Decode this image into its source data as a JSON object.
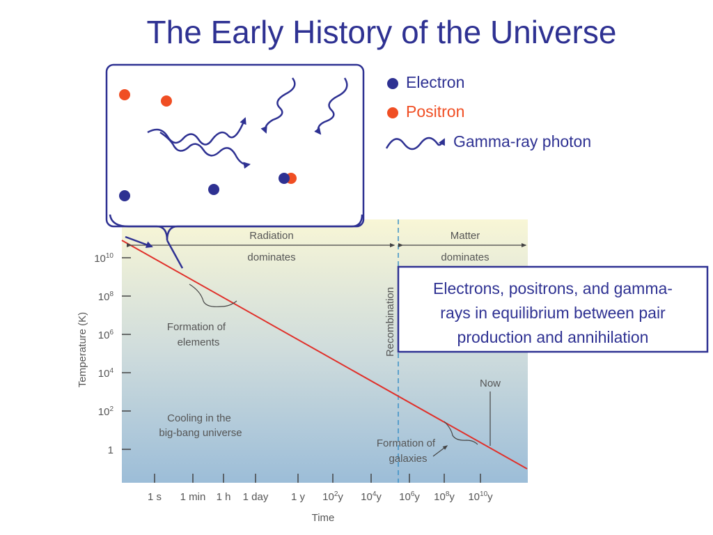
{
  "title": "The Early History of the Universe",
  "legend": [
    {
      "label": "Electron"
    },
    {
      "label": "Positron"
    },
    {
      "label": "Gamma-ray photon"
    }
  ],
  "chart": {
    "y_axis_label": "Temperature (K)",
    "x_axis_label": "Time",
    "y_ticks": [
      {
        "base": "10",
        "exp": "10"
      },
      {
        "base": "10",
        "exp": "8"
      },
      {
        "base": "10",
        "exp": "6"
      },
      {
        "base": "10",
        "exp": "4"
      },
      {
        "base": "10",
        "exp": "2"
      },
      {
        "base": "1"
      }
    ],
    "x_ticks": [
      {
        "base": "1 s"
      },
      {
        "base": "1 min"
      },
      {
        "base": "1 h"
      },
      {
        "base": "1 day"
      },
      {
        "base": "1 y"
      },
      {
        "base": "10",
        "exp": "2",
        "unit": "y"
      },
      {
        "base": "10",
        "exp": "4",
        "unit": "y"
      },
      {
        "base": "10",
        "exp": "6",
        "unit": "y"
      },
      {
        "base": "10",
        "exp": "8",
        "unit": "y"
      },
      {
        "base": "10",
        "exp": "10",
        "unit": "y"
      }
    ],
    "regions": [
      {
        "lines": [
          "Radiation",
          "dominates"
        ]
      },
      {
        "lines": [
          "Matter",
          "dominates"
        ]
      }
    ],
    "annotations": {
      "formation_of_elements": [
        "Formation of",
        "elements"
      ],
      "cooling": [
        "Cooling in the",
        "big-bang universe"
      ],
      "recombination": "Recombination",
      "now": "Now",
      "formation_of_galaxies": [
        "Formation of",
        "galaxies"
      ]
    }
  },
  "callout": [
    "Electrons, positrons, and gamma-",
    "rays in equilibrium between pair",
    "production and annihilation"
  ]
}
